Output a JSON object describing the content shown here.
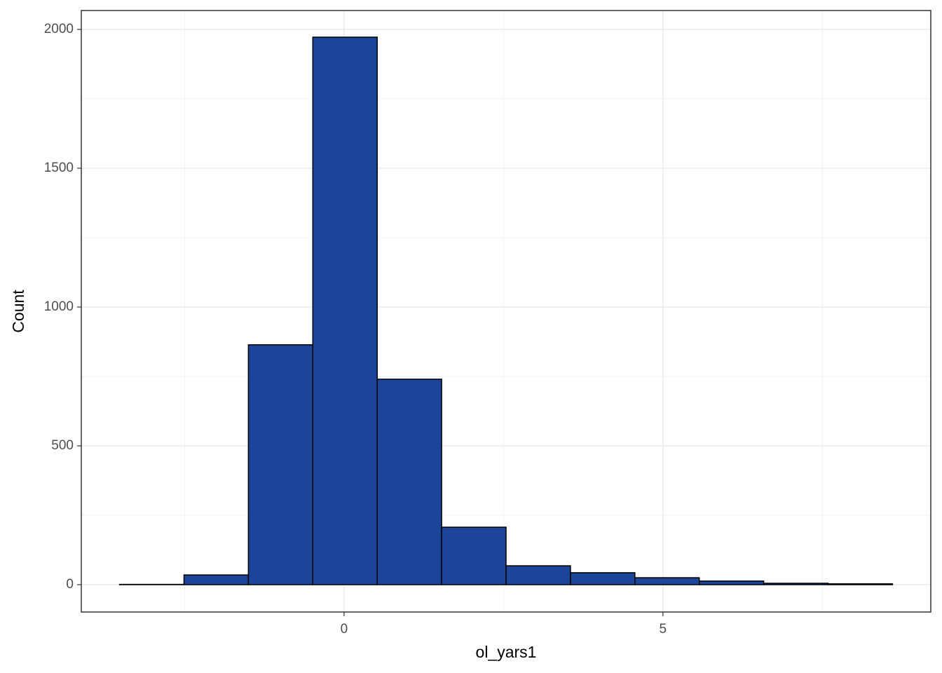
{
  "chart_data": {
    "type": "histogram",
    "x_label": "ol_yars1",
    "y_label": "Count",
    "bins": [
      -3.52,
      -2.51,
      -1.5,
      -0.49,
      0.52,
      1.53,
      2.54,
      3.55,
      4.56,
      5.57,
      6.58,
      7.59,
      8.6
    ],
    "counts": [
      1,
      35,
      864,
      1972,
      740,
      207,
      68,
      43,
      25,
      13,
      5,
      3
    ],
    "color": "#1a4599",
    "xlim": [
      -4.12,
      9.2
    ],
    "ylim": [
      -98.5,
      2068
    ],
    "xticks": [
      0,
      5
    ],
    "yticks": [
      0,
      500,
      1000,
      1500,
      2000
    ],
    "xminorticks": [
      -2.5,
      2.5,
      7.5
    ],
    "yminorticks": [
      250,
      750,
      1250,
      1750
    ],
    "grid": true
  }
}
